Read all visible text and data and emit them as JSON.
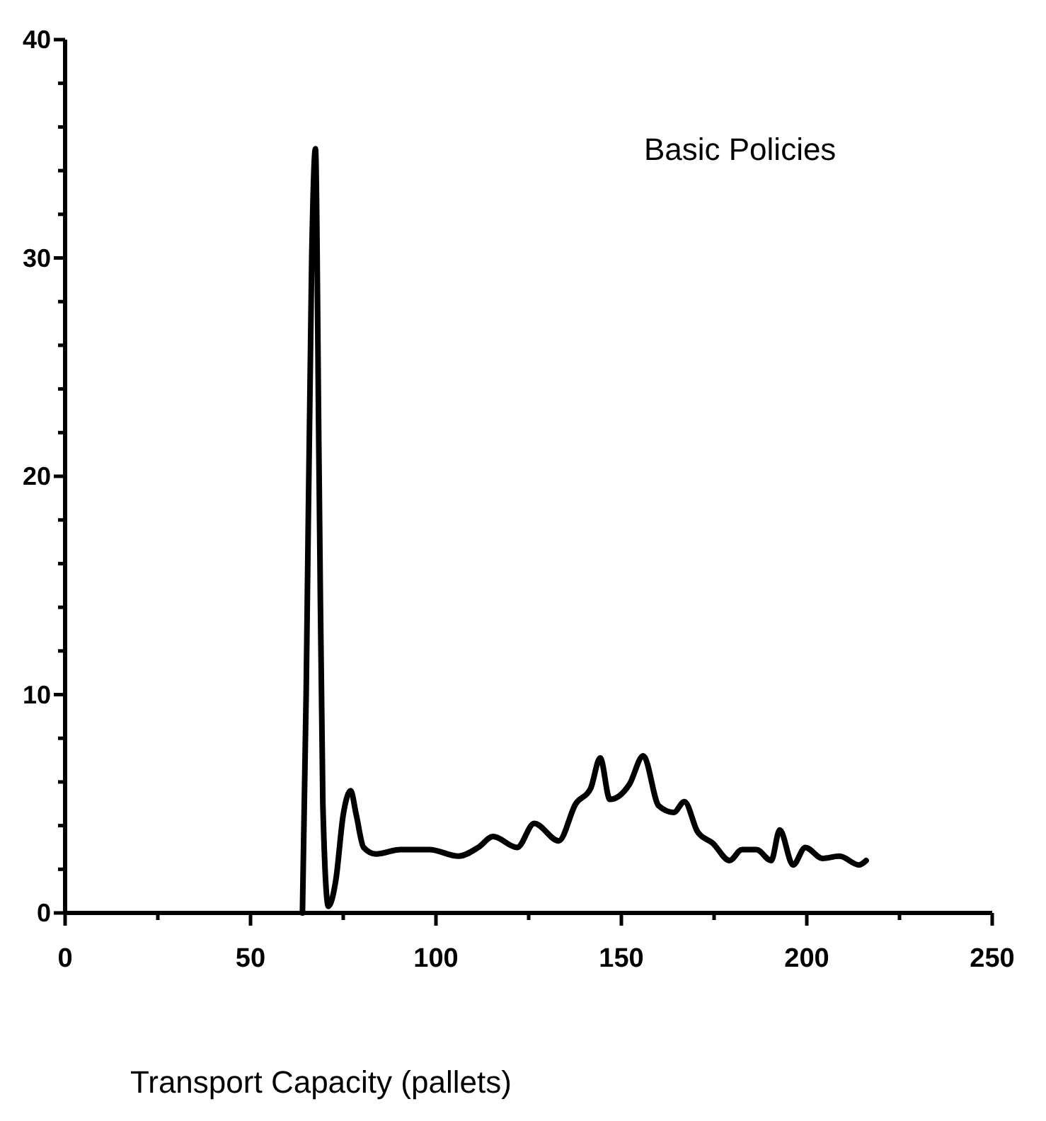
{
  "chart_data": {
    "type": "line",
    "title": "Basic Policies",
    "xlabel": "Transport Capacity  (pallets)",
    "xlim": [
      0,
      250
    ],
    "ylim": [
      0,
      40
    ],
    "xticks": [
      0,
      {
        "value": 25,
        "label": null
      },
      50,
      {
        "value": 75,
        "label": null
      },
      100,
      {
        "value": 125,
        "label": null
      },
      150,
      {
        "value": 175,
        "label": null
      },
      200,
      {
        "value": 225,
        "label": null
      },
      250
    ],
    "yticks": [
      0,
      {
        "value": 2,
        "label": null
      },
      {
        "value": 4,
        "label": null
      },
      {
        "value": 6,
        "label": null
      },
      {
        "value": 8,
        "label": null
      },
      10,
      {
        "value": 12,
        "label": null
      },
      {
        "value": 14,
        "label": null
      },
      {
        "value": 16,
        "label": null
      },
      {
        "value": 18,
        "label": null
      },
      20,
      {
        "value": 22,
        "label": null
      },
      {
        "value": 24,
        "label": null
      },
      {
        "value": 26,
        "label": null
      },
      {
        "value": 28,
        "label": null
      },
      30,
      {
        "value": 32,
        "label": null
      },
      {
        "value": 34,
        "label": null
      },
      {
        "value": 36,
        "label": null
      },
      {
        "value": 38,
        "label": null
      },
      40
    ],
    "grid": false,
    "marker": "none",
    "line_style": "solid",
    "series": [
      {
        "color": "#000000",
        "x": [
          64,
          65,
          66.5,
          67.5,
          68.5,
          69.5,
          71,
          73,
          75,
          77,
          78.5,
          80.5,
          83.8,
          90.4,
          98.2,
          106.1,
          111.4,
          115.4,
          121.9,
          126.5,
          133.1,
          137.7,
          141.7,
          144.3,
          146.9,
          152.2,
          155.9,
          160.1,
          164.1,
          167,
          170.6,
          174.6,
          179.2,
          182.5,
          186.4,
          190.4,
          192.7,
          196.3,
          199.6,
          204.2,
          208.8,
          214.1,
          216
        ],
        "values": [
          0,
          10,
          30,
          35,
          20,
          5,
          0.3,
          1.5,
          4.5,
          5.6,
          4.5,
          3.0,
          2.7,
          2.9,
          2.9,
          2.6,
          3.0,
          3.5,
          3.0,
          4.1,
          3.3,
          5.0,
          5.7,
          7.1,
          5.2,
          5.9,
          7.2,
          4.9,
          4.6,
          5.1,
          3.7,
          3.2,
          2.4,
          2.9,
          2.9,
          2.4,
          3.8,
          2.2,
          3.0,
          2.5,
          2.6,
          2.2,
          2.4
        ]
      }
    ]
  }
}
